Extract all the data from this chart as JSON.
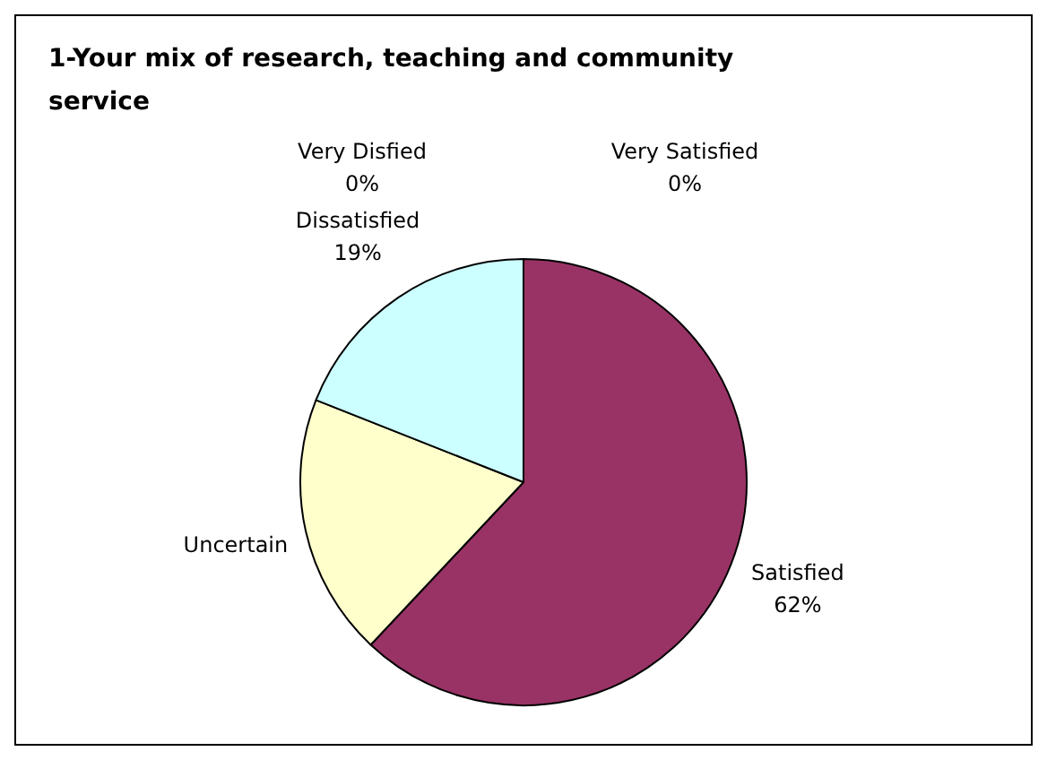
{
  "chart_data": {
    "type": "pie",
    "title": "1-Your mix of research, teaching and community service",
    "categories": [
      "Very Satisfied",
      "Satisfied",
      "Uncertain",
      "Dissatisfied",
      "Very Disfied"
    ],
    "values": [
      0,
      62,
      19,
      19,
      0
    ],
    "colors": [
      "#9999ff",
      "#993366",
      "#ffffcc",
      "#ccffff",
      "#660066"
    ],
    "value_labels": [
      "0%",
      "62%",
      null,
      "19%",
      "0%"
    ],
    "legend": false
  }
}
